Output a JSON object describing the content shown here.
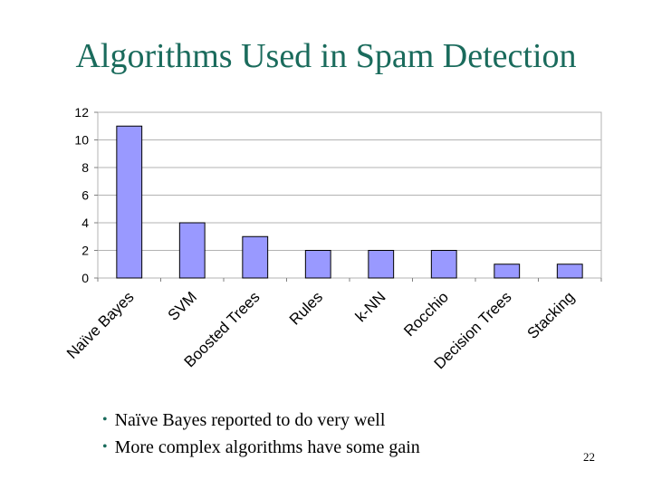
{
  "slide": {
    "title": "Algorithms Used in Spam Detection",
    "bullets": [
      "Naïve Bayes reported to do very well",
      "More complex algorithms have some gain"
    ],
    "page_number": "22"
  },
  "colors": {
    "title": "#1a6b5c",
    "bar_fill": "#9999ff",
    "bar_stroke": "#000000",
    "plot_bg": "#ffffff",
    "grid": "#b3b3b3"
  },
  "chart_data": {
    "type": "bar",
    "categories": [
      "Naïve Bayes",
      "SVM",
      "Boosted Trees",
      "Rules",
      "k-NN",
      "Rocchio",
      "Decision Trees",
      "Stacking"
    ],
    "values": [
      11,
      4,
      3,
      2,
      2,
      2,
      1,
      1
    ],
    "yticks": [
      "0",
      "2",
      "4",
      "6",
      "8",
      "10",
      "12"
    ],
    "ylim": [
      0,
      12
    ],
    "grid": true,
    "legend": "none"
  }
}
